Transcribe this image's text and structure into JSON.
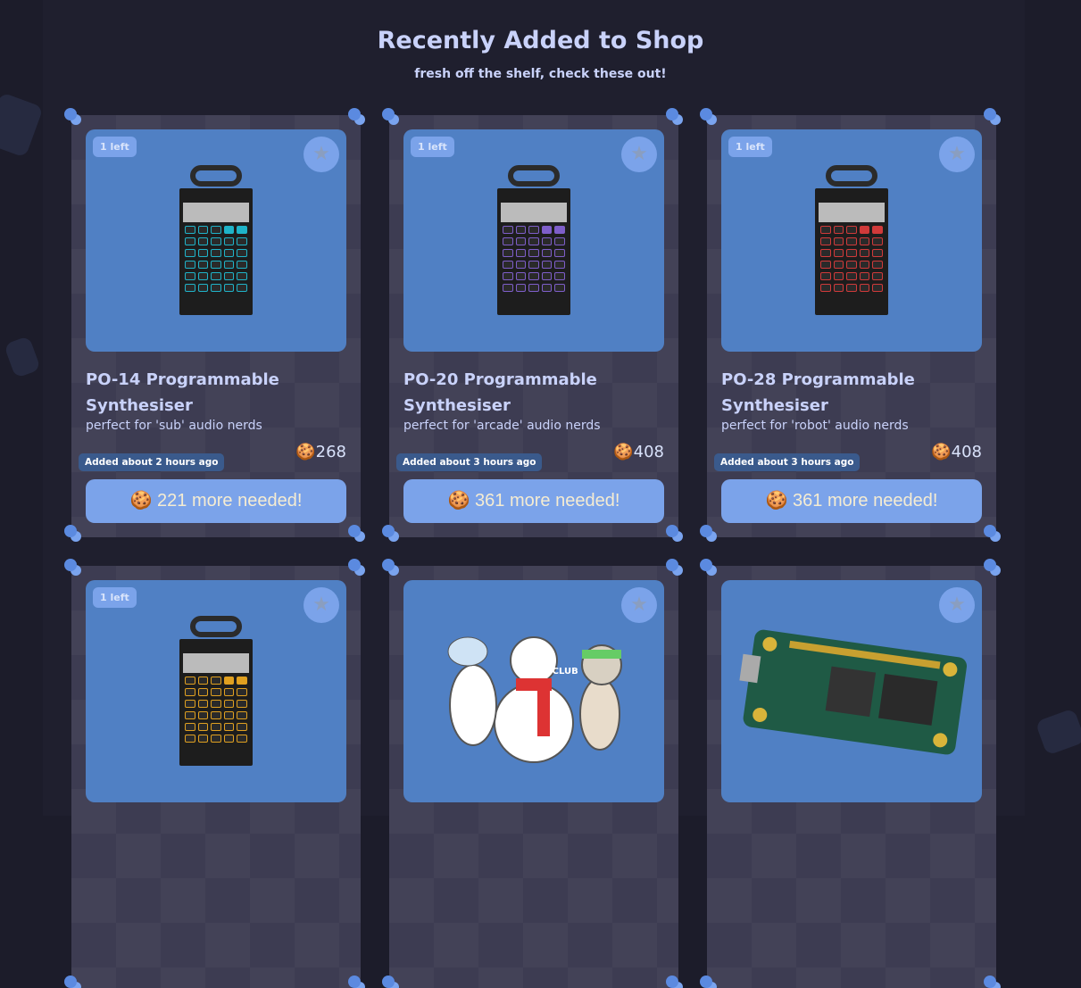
{
  "header": {
    "title": "Recently Added to Shop",
    "subtitle": "fresh off the shelf, check these out!"
  },
  "cards": [
    {
      "badge": "1 left",
      "title": "PO-14 Programmable Synthesiser",
      "desc": "perfect for 'sub' audio nerds",
      "price": "🍪268",
      "added": "Added about 2 hours ago",
      "button": "🍪 221 more needed!",
      "accent": "#1fb3c8",
      "image": "pocket-operator-sub"
    },
    {
      "badge": "1 left",
      "title": "PO-20 Programmable Synthesiser",
      "desc": "perfect for 'arcade' audio nerds",
      "price": "🍪408",
      "added": "Added about 3 hours ago",
      "button": "🍪 361 more needed!",
      "accent": "#7e5ec9",
      "image": "pocket-operator-arcade"
    },
    {
      "badge": "1 left",
      "title": "PO-28 Programmable Synthesiser",
      "desc": "perfect for 'robot' audio nerds",
      "price": "🍪408",
      "added": "Added about 3 hours ago",
      "button": "🍪 361 more needed!",
      "accent": "#d03a3a",
      "image": "pocket-operator-robot"
    },
    {
      "badge": "1 left",
      "accent": "#e0a020",
      "image": "pocket-operator-office"
    },
    {
      "image": "snowman-hack-club-sticker",
      "sticker_text": "HACK CLUB"
    },
    {
      "image": "raspberry-pi-zero-board"
    }
  ]
}
